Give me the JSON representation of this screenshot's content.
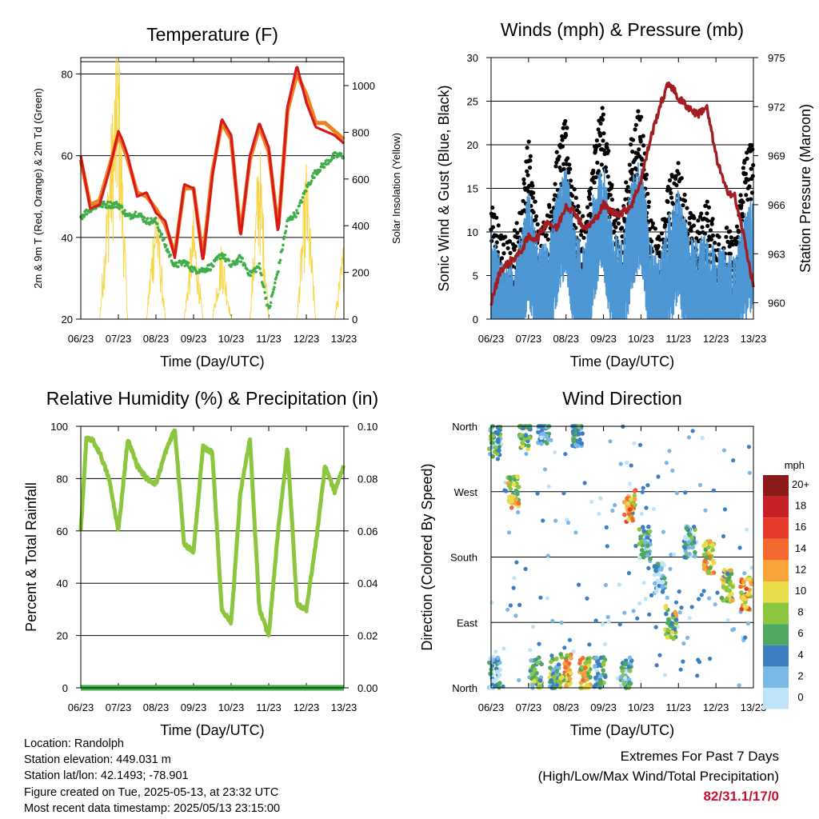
{
  "chart_data": [
    {
      "type": "line",
      "title": "Temperature (F)",
      "xlabel": "Time (Day/UTC)",
      "ylabel": "2m & 9m T (Red, Orange) & 2m Td (Green)",
      "ylabel_right": "Solar Insolation (Yellow)",
      "x_ticks": [
        "06/23",
        "07/23",
        "08/23",
        "09/23",
        "10/23",
        "11/23",
        "12/23",
        "13/23"
      ],
      "ylim": [
        20,
        84
      ],
      "y_ticks": [
        20,
        40,
        60,
        80
      ],
      "ylim_right": [
        0,
        1120
      ],
      "y_ticks_right": [
        0,
        200,
        400,
        600,
        800,
        1000
      ],
      "x": [
        6.0,
        6.25,
        6.5,
        6.75,
        7.0,
        7.1,
        7.25,
        7.5,
        7.75,
        8.0,
        8.25,
        8.5,
        8.75,
        9.0,
        9.25,
        9.5,
        9.75,
        10.0,
        10.25,
        10.5,
        10.75,
        11.0,
        11.25,
        11.5,
        11.75,
        12.0,
        12.25,
        12.5,
        12.75,
        13.0
      ],
      "series": [
        {
          "name": "2m T",
          "color": "#d7191c",
          "values": [
            60,
            47,
            48,
            56,
            66,
            64,
            60,
            50,
            51,
            46,
            44,
            35,
            53,
            52,
            34,
            55,
            69,
            65,
            40,
            60,
            68,
            62,
            41,
            72,
            82,
            73,
            67,
            66,
            65,
            63
          ]
        },
        {
          "name": "9m T",
          "color": "#f07f22",
          "values": [
            59,
            48,
            49,
            57,
            65,
            63,
            59,
            51,
            50,
            47,
            43,
            36,
            52,
            52,
            35,
            56,
            68,
            64,
            41,
            59,
            67,
            61,
            42,
            71,
            80,
            75,
            68,
            68,
            66,
            64
          ]
        },
        {
          "name": "2m Td",
          "color": "#3fae49",
          "values": [
            45,
            47,
            48,
            48,
            48,
            47,
            45,
            46,
            44,
            44,
            38,
            33,
            34,
            32,
            32,
            33,
            36,
            33,
            35,
            31,
            33,
            22,
            32,
            44,
            46,
            52,
            56,
            58,
            60,
            60
          ]
        },
        {
          "name": "Solar Insolation",
          "color": "#f9d548",
          "axis": "right",
          "values": [
            0,
            0,
            0,
            600,
            1100,
            600,
            0,
            0,
            0,
            500,
            0,
            0,
            0,
            400,
            0,
            0,
            300,
            0,
            0,
            0,
            700,
            0,
            0,
            0,
            0,
            600,
            0,
            0,
            0,
            300
          ]
        }
      ]
    },
    {
      "type": "scatter",
      "title": "Winds (mph) & Pressure (mb)",
      "xlabel": "Time (Day/UTC)",
      "ylabel": "Sonic Wind & Gust (Blue, Black)",
      "ylabel_right": "Station Pressure (Maroon)",
      "x_ticks": [
        "06/23",
        "07/23",
        "08/23",
        "09/23",
        "10/23",
        "11/23",
        "12/23",
        "13/23"
      ],
      "ylim": [
        0,
        30
      ],
      "y_ticks": [
        0,
        5,
        10,
        15,
        20,
        25,
        30
      ],
      "ylim_right": [
        959,
        975
      ],
      "y_ticks_right": [
        960,
        963,
        966,
        969,
        972,
        975
      ],
      "x": [
        6.0,
        6.25,
        6.5,
        6.75,
        7.0,
        7.25,
        7.5,
        7.75,
        8.0,
        8.25,
        8.5,
        8.75,
        9.0,
        9.25,
        9.5,
        9.75,
        10.0,
        10.25,
        10.5,
        10.75,
        11.0,
        11.25,
        11.5,
        11.75,
        12.0,
        12.25,
        12.5,
        12.75,
        13.0
      ],
      "series": [
        {
          "name": "Wind",
          "color": "#4d97d4",
          "values": [
            6,
            3,
            2,
            5,
            11,
            4,
            5,
            10,
            14,
            6,
            4,
            11,
            14,
            6,
            5,
            12,
            15,
            5,
            3,
            8,
            11,
            6,
            5,
            6,
            4,
            4,
            3,
            8,
            10
          ]
        },
        {
          "name": "Gust",
          "color": "#000000",
          "values": [
            10,
            6,
            5,
            8,
            17,
            7,
            8,
            15,
            19,
            10,
            7,
            16,
            21,
            10,
            8,
            17,
            21,
            8,
            5,
            12,
            14,
            9,
            7,
            10,
            6,
            7,
            5,
            15,
            17
          ]
        },
        {
          "name": "Station Pressure",
          "color": "#a11d21",
          "axis": "right",
          "values": [
            960,
            962,
            962.5,
            963,
            964,
            964,
            965,
            964.5,
            966,
            965.5,
            964.5,
            965,
            966,
            965.5,
            965.5,
            966,
            967.5,
            970,
            972,
            973.5,
            972.5,
            972,
            971.5,
            972,
            969,
            967,
            966.5,
            964,
            961
          ]
        }
      ]
    },
    {
      "type": "line",
      "title": "Relative Humidity (%) & Precipitation (in)",
      "xlabel": "Time (Day/UTC)",
      "ylabel": "Percent & Total Rainfall",
      "x_ticks": [
        "06/23",
        "07/23",
        "08/23",
        "09/23",
        "10/23",
        "11/23",
        "12/23",
        "13/23"
      ],
      "ylim": [
        0,
        100
      ],
      "y_ticks": [
        0,
        20,
        40,
        60,
        80,
        100
      ],
      "ylim_right": [
        0,
        0.1
      ],
      "y_ticks_right": [
        "0.00",
        "0.02",
        "0.04",
        "0.06",
        "0.08",
        "0.10"
      ],
      "x": [
        6.0,
        6.15,
        6.3,
        6.5,
        6.75,
        7.0,
        7.25,
        7.5,
        7.75,
        8.0,
        8.25,
        8.5,
        8.75,
        9.0,
        9.25,
        9.5,
        9.75,
        10.0,
        10.25,
        10.5,
        10.75,
        11.0,
        11.25,
        11.5,
        11.75,
        12.0,
        12.25,
        12.5,
        12.75,
        13.0
      ],
      "series": [
        {
          "name": "Relative Humidity",
          "color": "#8cc63f",
          "values": [
            60,
            95,
            95,
            90,
            80,
            60,
            95,
            85,
            80,
            78,
            90,
            99,
            55,
            52,
            92,
            90,
            30,
            25,
            75,
            95,
            30,
            20,
            60,
            92,
            32,
            30,
            55,
            85,
            75,
            85
          ]
        },
        {
          "name": "Total Precipitation",
          "color": "#3fae49",
          "axis": "right",
          "values": [
            0,
            0,
            0,
            0,
            0,
            0,
            0,
            0,
            0,
            0,
            0,
            0,
            0,
            0,
            0,
            0,
            0,
            0,
            0,
            0,
            0,
            0,
            0,
            0,
            0,
            0,
            0,
            0,
            0,
            0
          ]
        }
      ]
    },
    {
      "type": "scatter",
      "title": "Wind Direction",
      "xlabel": "Time (Day/UTC)",
      "ylabel": "Direction (Colored By Speed)",
      "x_ticks": [
        "06/23",
        "07/23",
        "08/23",
        "09/23",
        "10/23",
        "11/23",
        "12/23",
        "13/23"
      ],
      "y_categories": [
        "North",
        "East",
        "South",
        "West",
        "North"
      ],
      "ylim": [
        0,
        360
      ],
      "colorbar": {
        "title": "mph",
        "labels": [
          "20+",
          "18",
          "16",
          "14",
          "12",
          "10",
          "8",
          "6",
          "4",
          "2",
          "0"
        ],
        "colors": [
          "#8c1a1a",
          "#c62026",
          "#e63a2d",
          "#f26a2e",
          "#f9a43a",
          "#e8dc4a",
          "#8cc63f",
          "#4ea860",
          "#3c7fc1",
          "#7ab8e6",
          "#bfe3f7"
        ]
      },
      "clusters": [
        {
          "x": 6.1,
          "dir": 340,
          "speed": 4
        },
        {
          "x": 6.1,
          "dir": 20,
          "speed": 2
        },
        {
          "x": 6.6,
          "dir": 270,
          "speed": 10
        },
        {
          "x": 6.9,
          "dir": 350,
          "speed": 6
        },
        {
          "x": 7.2,
          "dir": 20,
          "speed": 6
        },
        {
          "x": 7.4,
          "dir": 355,
          "speed": 4
        },
        {
          "x": 7.7,
          "dir": 20,
          "speed": 6
        },
        {
          "x": 8.0,
          "dir": 25,
          "speed": 10
        },
        {
          "x": 8.3,
          "dir": 355,
          "speed": 6
        },
        {
          "x": 8.5,
          "dir": 20,
          "speed": 10
        },
        {
          "x": 8.9,
          "dir": 20,
          "speed": 4
        },
        {
          "x": 9.6,
          "dir": 20,
          "speed": 4
        },
        {
          "x": 9.7,
          "dir": 250,
          "speed": 12
        },
        {
          "x": 10.1,
          "dir": 200,
          "speed": 4
        },
        {
          "x": 10.5,
          "dir": 150,
          "speed": 2
        },
        {
          "x": 10.8,
          "dir": 90,
          "speed": 8
        },
        {
          "x": 11.3,
          "dir": 200,
          "speed": 4
        },
        {
          "x": 11.8,
          "dir": 180,
          "speed": 10
        },
        {
          "x": 12.3,
          "dir": 140,
          "speed": 8
        },
        {
          "x": 12.8,
          "dir": 130,
          "speed": 12
        }
      ]
    }
  ],
  "info": {
    "location": "Location: Randolph",
    "elevation": "Station elevation: 449.031 m",
    "latlon": "Station lat/lon: 42.1493; -78.901",
    "created": "Figure created on Tue, 2025-05-13, at 23:32 UTC",
    "recent": "Most recent data timestamp: 2025/05/13 23:15:00"
  },
  "extremes": {
    "line1": "Extremes For Past 7 Days",
    "line2": "(High/Low/Max Wind/Total Precipitation)",
    "value": "82/31.1/17/0"
  }
}
